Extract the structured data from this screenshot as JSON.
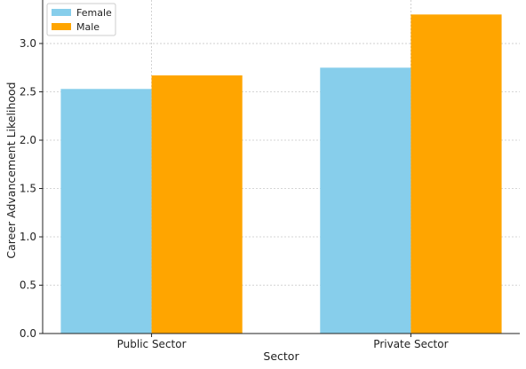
{
  "chart_data": {
    "type": "bar",
    "title": "",
    "xlabel": "Sector",
    "ylabel": "Career Advancement Likelihood",
    "categories": [
      "Public Sector",
      "Private Sector"
    ],
    "series": [
      {
        "name": "Female",
        "values": [
          2.53,
          2.75
        ],
        "color": "#87ceeb"
      },
      {
        "name": "Male",
        "values": [
          2.67,
          3.3
        ],
        "color": "#ffa500"
      }
    ],
    "ylim": [
      0,
      3.45
    ],
    "yticks": [
      0.0,
      0.5,
      1.0,
      1.5,
      2.0,
      2.5,
      3.0
    ],
    "ytick_labels": [
      "0.0",
      "0.5",
      "1.0",
      "1.5",
      "2.0",
      "2.5",
      "3.0"
    ],
    "grid": true,
    "legend_position": "top-left"
  }
}
